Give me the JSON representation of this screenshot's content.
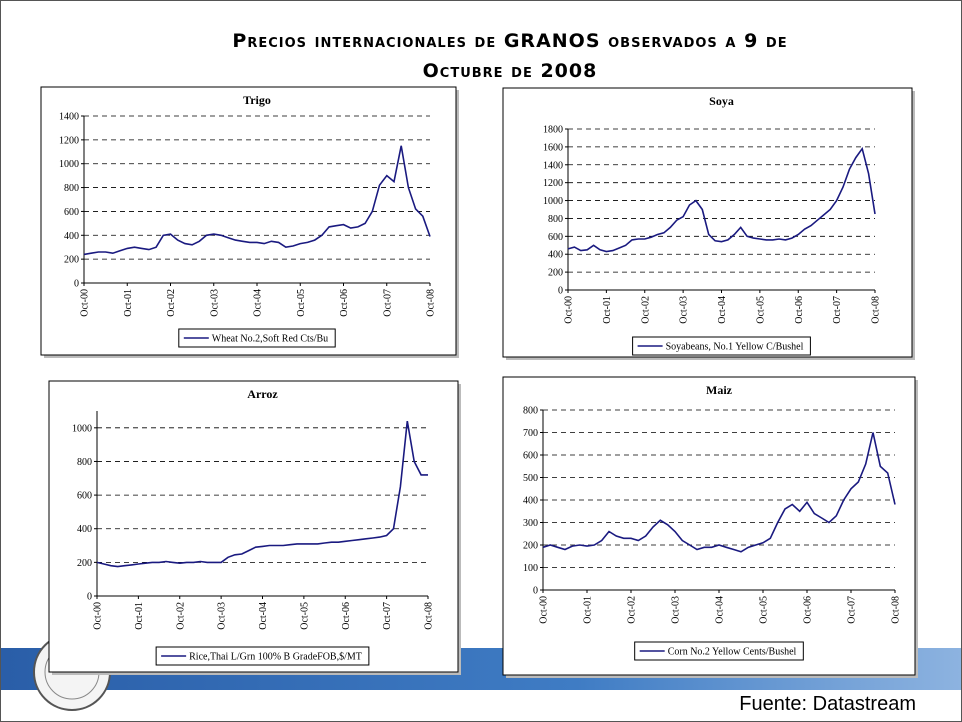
{
  "title": [
    "Precios internacionales de GRANOS observados a 9 de",
    "Octubre de 2008"
  ],
  "source": "Fuente: Datastream",
  "chart_data": [
    {
      "type": "line",
      "title": "Trigo",
      "categories": [
        "Oct-00",
        null,
        null,
        null,
        null,
        null,
        "Oct-01",
        null,
        null,
        null,
        null,
        null,
        "Oct-02",
        null,
        null,
        null,
        null,
        null,
        "Oct-03",
        null,
        null,
        null,
        null,
        null,
        "Oct-04",
        null,
        null,
        null,
        null,
        null,
        "Oct-05",
        null,
        null,
        null,
        null,
        null,
        "Oct-06",
        null,
        null,
        null,
        null,
        null,
        "Oct-07",
        null,
        null,
        null,
        null,
        null,
        "Oct-08"
      ],
      "series": [
        {
          "name": "Wheat No.2,Soft Red Cts/Bu",
          "color": "#1a1a80",
          "values": [
            240,
            250,
            260,
            260,
            250,
            270,
            290,
            300,
            290,
            280,
            300,
            400,
            410,
            360,
            330,
            320,
            350,
            400,
            410,
            400,
            380,
            360,
            350,
            340,
            340,
            330,
            350,
            340,
            300,
            310,
            330,
            340,
            360,
            400,
            470,
            480,
            490,
            460,
            470,
            500,
            600,
            820,
            900,
            850,
            1150,
            800,
            620,
            560,
            390
          ]
        }
      ],
      "ylim": [
        0,
        1400
      ],
      "yticks": [
        0,
        200,
        400,
        600,
        800,
        1000,
        1200,
        1400
      ],
      "grid": true
    },
    {
      "type": "line",
      "title": "Soya",
      "categories": [
        "Oct-00",
        null,
        null,
        null,
        null,
        null,
        "Oct-01",
        null,
        null,
        null,
        null,
        null,
        "Oct-02",
        null,
        null,
        null,
        null,
        null,
        "Oct-03",
        null,
        null,
        null,
        null,
        null,
        "Oct-04",
        null,
        null,
        null,
        null,
        null,
        "Oct-05",
        null,
        null,
        null,
        null,
        null,
        "Oct-06",
        null,
        null,
        null,
        null,
        null,
        "Oct-07",
        null,
        null,
        null,
        null,
        null,
        "Oct-08"
      ],
      "series": [
        {
          "name": "Soyabeans, No.1 Yellow C/Bushel",
          "color": "#1a1a80",
          "values": [
            460,
            480,
            440,
            450,
            500,
            450,
            430,
            440,
            470,
            500,
            560,
            570,
            570,
            590,
            620,
            640,
            700,
            780,
            820,
            950,
            1000,
            900,
            620,
            550,
            540,
            560,
            620,
            700,
            600,
            580,
            570,
            560,
            560,
            570,
            560,
            580,
            620,
            680,
            720,
            780,
            840,
            900,
            1000,
            1150,
            1350,
            1480,
            1580,
            1300,
            850
          ]
        }
      ],
      "ylim": [
        0,
        1800
      ],
      "yticks": [
        0,
        200,
        400,
        600,
        800,
        1000,
        1200,
        1400,
        1600,
        1800
      ],
      "grid": true
    },
    {
      "type": "line",
      "title": "Arroz",
      "categories": [
        "Oct-00",
        null,
        null,
        null,
        null,
        null,
        "Oct-01",
        null,
        null,
        null,
        null,
        null,
        "Oct-02",
        null,
        null,
        null,
        null,
        null,
        "Oct-03",
        null,
        null,
        null,
        null,
        null,
        "Oct-04",
        null,
        null,
        null,
        null,
        null,
        "Oct-05",
        null,
        null,
        null,
        null,
        null,
        "Oct-06",
        null,
        null,
        null,
        null,
        null,
        "Oct-07",
        null,
        null,
        null,
        null,
        null,
        "Oct-08"
      ],
      "series": [
        {
          "name": "Rice,Thai L/Grn 100% B GradeFOB,$/MT",
          "color": "#1a1a80",
          "values": [
            200,
            190,
            180,
            175,
            180,
            185,
            190,
            195,
            200,
            200,
            205,
            200,
            195,
            200,
            200,
            205,
            200,
            200,
            200,
            230,
            245,
            250,
            270,
            290,
            295,
            300,
            300,
            300,
            305,
            310,
            310,
            310,
            310,
            315,
            320,
            320,
            325,
            330,
            335,
            340,
            345,
            350,
            360,
            400,
            650,
            1040,
            800,
            720,
            720
          ]
        }
      ],
      "ylim": [
        0,
        1100
      ],
      "yticks": [
        0,
        200,
        400,
        600,
        800,
        1000
      ],
      "grid": true
    },
    {
      "type": "line",
      "title": "Maiz",
      "categories": [
        "Oct-00",
        null,
        null,
        null,
        null,
        null,
        "Oct-01",
        null,
        null,
        null,
        null,
        null,
        "Oct-02",
        null,
        null,
        null,
        null,
        null,
        "Oct-03",
        null,
        null,
        null,
        null,
        null,
        "Oct-04",
        null,
        null,
        null,
        null,
        null,
        "Oct-05",
        null,
        null,
        null,
        null,
        null,
        "Oct-06",
        null,
        null,
        null,
        null,
        null,
        "Oct-07",
        null,
        null,
        null,
        null,
        null,
        "Oct-08"
      ],
      "series": [
        {
          "name": "Corn No.2 Yellow Cents/Bushel",
          "color": "#1a1a80",
          "values": [
            190,
            200,
            190,
            180,
            195,
            200,
            195,
            200,
            220,
            260,
            240,
            230,
            230,
            220,
            240,
            280,
            310,
            290,
            260,
            220,
            200,
            180,
            190,
            190,
            200,
            190,
            180,
            170,
            190,
            200,
            210,
            230,
            300,
            360,
            380,
            350,
            390,
            340,
            320,
            300,
            330,
            400,
            450,
            480,
            560,
            700,
            550,
            520,
            380
          ]
        }
      ],
      "ylim": [
        0,
        800
      ],
      "yticks": [
        0,
        100,
        200,
        300,
        400,
        500,
        600,
        700,
        800
      ],
      "grid": true
    }
  ]
}
